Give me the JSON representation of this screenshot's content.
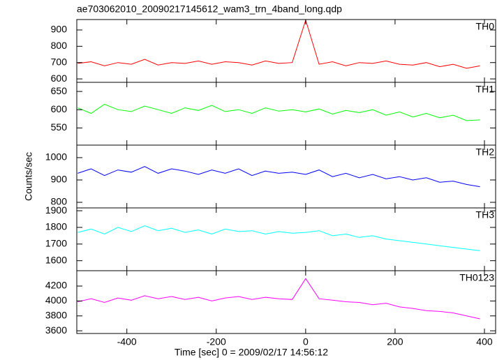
{
  "chart_data": [
    {
      "type": "line",
      "title": "ae703062010_20090217145612_wam3_trn_4band_long.qdp",
      "name": "TH0",
      "color": "#ff0000",
      "x": [
        -510,
        -480,
        -450,
        -420,
        -390,
        -360,
        -330,
        -300,
        -270,
        -240,
        -210,
        -180,
        -150,
        -120,
        -90,
        -60,
        -30,
        0,
        30,
        60,
        90,
        120,
        150,
        180,
        210,
        240,
        270,
        300,
        330,
        360,
        390
      ],
      "values": [
        695,
        705,
        680,
        700,
        690,
        720,
        685,
        700,
        695,
        710,
        690,
        705,
        700,
        685,
        710,
        695,
        700,
        960,
        690,
        705,
        680,
        700,
        695,
        710,
        690,
        685,
        700,
        675,
        690,
        665,
        680
      ],
      "xlim": [
        -512,
        425
      ],
      "ylim": [
        579,
        964
      ],
      "yticks": [
        600,
        700,
        800,
        900
      ]
    },
    {
      "type": "line",
      "name": "TH1",
      "color": "#00ff00",
      "x": [
        -510,
        -480,
        -450,
        -420,
        -390,
        -360,
        -330,
        -300,
        -270,
        -240,
        -210,
        -180,
        -150,
        -120,
        -90,
        -60,
        -30,
        0,
        30,
        60,
        90,
        120,
        150,
        180,
        210,
        240,
        270,
        300,
        330,
        360,
        390
      ],
      "values": [
        605,
        590,
        615,
        600,
        595,
        610,
        600,
        590,
        605,
        598,
        612,
        595,
        600,
        590,
        605,
        596,
        600,
        594,
        602,
        588,
        598,
        592,
        600,
        585,
        594,
        580,
        590,
        578,
        585,
        570,
        572
      ],
      "xlim": [
        -512,
        425
      ],
      "ylim": [
        503,
        675
      ],
      "yticks": [
        550,
        600,
        650
      ]
    },
    {
      "type": "line",
      "name": "TH2",
      "color": "#0000ff",
      "ylabel": "Counts/sec",
      "x": [
        -510,
        -480,
        -450,
        -420,
        -390,
        -360,
        -330,
        -300,
        -270,
        -240,
        -210,
        -180,
        -150,
        -120,
        -90,
        -60,
        -30,
        0,
        30,
        60,
        90,
        120,
        150,
        180,
        210,
        240,
        270,
        300,
        330,
        360,
        390
      ],
      "values": [
        930,
        950,
        920,
        945,
        935,
        960,
        930,
        950,
        940,
        925,
        945,
        930,
        950,
        920,
        940,
        930,
        935,
        925,
        945,
        915,
        930,
        910,
        925,
        905,
        915,
        900,
        910,
        890,
        895,
        880,
        870
      ],
      "xlim": [
        -512,
        425
      ],
      "ylim": [
        775,
        1056
      ],
      "yticks": [
        800,
        900,
        1000
      ]
    },
    {
      "type": "line",
      "name": "TH3",
      "color": "#00ffff",
      "x": [
        -510,
        -480,
        -450,
        -420,
        -390,
        -360,
        -330,
        -300,
        -270,
        -240,
        -210,
        -180,
        -150,
        -120,
        -90,
        -60,
        -30,
        0,
        30,
        60,
        90,
        120,
        150,
        180,
        210,
        240,
        270,
        300,
        330,
        360,
        390
      ],
      "values": [
        1770,
        1790,
        1760,
        1800,
        1775,
        1810,
        1780,
        1795,
        1770,
        1785,
        1760,
        1790,
        1775,
        1780,
        1760,
        1775,
        1765,
        1770,
        1780,
        1750,
        1760,
        1740,
        1750,
        1730,
        1720,
        1710,
        1700,
        1690,
        1680,
        1670,
        1660
      ],
      "xlim": [
        -512,
        425
      ],
      "ylim": [
        1540,
        1917
      ],
      "yticks": [
        1600,
        1700,
        1800,
        1900
      ]
    },
    {
      "type": "line",
      "name": "TH0123",
      "color": "#ff00ff",
      "xlabel": "Time [sec] 0 = 2009/02/17 14:56:12",
      "x": [
        -510,
        -480,
        -450,
        -420,
        -390,
        -360,
        -330,
        -300,
        -270,
        -240,
        -210,
        -180,
        -150,
        -120,
        -90,
        -60,
        -30,
        0,
        30,
        60,
        90,
        120,
        150,
        180,
        210,
        240,
        270,
        300,
        330,
        360,
        390
      ],
      "values": [
        3990,
        4030,
        3980,
        4040,
        4010,
        4070,
        4030,
        4060,
        4020,
        4050,
        4000,
        4040,
        4060,
        4020,
        4050,
        4030,
        4020,
        4300,
        4030,
        4010,
        3990,
        3980,
        3950,
        3970,
        3920,
        3900,
        3870,
        3860,
        3840,
        3800,
        3760
      ],
      "xlim": [
        -512,
        425
      ],
      "ylim": [
        3564,
        4406
      ],
      "yticks": [
        3600,
        3800,
        4000,
        4200
      ],
      "xticks": [
        -400,
        -200,
        0,
        200,
        400
      ]
    }
  ]
}
